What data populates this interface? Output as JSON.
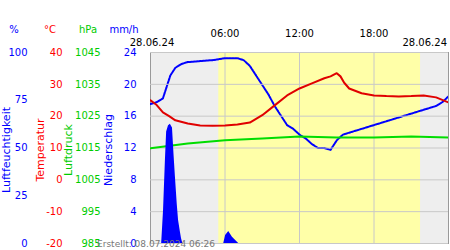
{
  "chart_data": [
    {
      "type": "line",
      "unit": "%",
      "ylabel": "Luftfeuchtigkeit",
      "color": "#0000ff",
      "date_start": "28.06.24",
      "date_end": "28.06.24",
      "caption": "Erstellt: 08.07.2024 06:26",
      "daylight": {
        "start": 5.5,
        "end": 21.75
      },
      "xlim": [
        0,
        24
      ],
      "xticks": [
        {
          "value": 6,
          "label": "06:00"
        },
        {
          "value": 12,
          "label": "12:00"
        },
        {
          "value": 18,
          "label": "18:00"
        }
      ],
      "ylim": [
        0,
        100
      ],
      "yticks": [
        0,
        25,
        50,
        75,
        100
      ],
      "grid": "x",
      "series": [
        {
          "name": "Luftfeuchtigkeit",
          "color": "#0000ff",
          "line_style": "dotted",
          "x": [
            0,
            0.5,
            1,
            1.3,
            1.6,
            2,
            2.5,
            3,
            4,
            5,
            6,
            7,
            7.5,
            8,
            8.5,
            9,
            9.5,
            10,
            10.5,
            11,
            11.5,
            12,
            12.5,
            13,
            13.5,
            14,
            14.5,
            15,
            15.5,
            16,
            17,
            18,
            19,
            20,
            21,
            22,
            23,
            23.5,
            24
          ],
          "values": [
            73,
            74,
            76,
            82,
            88,
            92,
            94,
            95,
            95.5,
            96,
            97,
            97,
            96,
            93,
            88,
            83,
            78,
            72,
            67,
            62,
            60,
            57,
            55,
            52,
            50,
            50,
            49,
            54,
            57,
            58,
            60,
            62,
            64,
            66,
            68,
            70,
            72,
            74,
            77
          ]
        }
      ]
    },
    {
      "type": "line",
      "unit": "°C",
      "ylabel": "Temperatur",
      "color": "#ff0000",
      "xlim": [
        0,
        24
      ],
      "ylim": [
        -20,
        40
      ],
      "yticks": [
        -20,
        -10,
        0,
        10,
        20,
        30,
        40
      ],
      "grid": "y",
      "series": [
        {
          "name": "Temperatur",
          "color": "#e00000",
          "x": [
            0,
            0.5,
            1,
            1.5,
            2,
            3,
            4,
            5,
            6,
            7,
            8,
            9,
            10,
            11,
            12,
            13,
            14,
            14.5,
            15,
            15.3,
            15.6,
            16,
            17,
            18,
            19,
            20,
            21,
            22,
            23,
            24
          ],
          "values": [
            25,
            23.5,
            21.2,
            20,
            18.7,
            17.7,
            17.1,
            17,
            17.1,
            17.4,
            18,
            20.3,
            23.4,
            26.5,
            28.7,
            30.3,
            31.9,
            32.5,
            33.5,
            32.5,
            30.5,
            28.7,
            27.2,
            26.5,
            26.3,
            26.2,
            26.3,
            26.5,
            25.9,
            24.3
          ]
        }
      ]
    },
    {
      "type": "line",
      "unit": "hPa",
      "ylabel": "Luftdruck",
      "color": "#00cc00",
      "xlim": [
        0,
        24
      ],
      "ylim": [
        985,
        1045
      ],
      "yticks": [
        985,
        995,
        1005,
        1015,
        1025,
        1035,
        1045
      ],
      "grid": false,
      "series": [
        {
          "name": "Luftdruck",
          "color": "#00dd00",
          "x": [
            0,
            3,
            6,
            9,
            12,
            15,
            18,
            21,
            24
          ],
          "values": [
            1014.9,
            1016.4,
            1017.4,
            1018,
            1018.6,
            1018.3,
            1018.3,
            1018.6,
            1018.3
          ]
        }
      ]
    },
    {
      "type": "area",
      "unit": "mm/h",
      "ylabel": "Niederschlag",
      "color": "#0000ff",
      "xlim": [
        0,
        24
      ],
      "ylim": [
        0,
        24
      ],
      "yticks": [
        0,
        4,
        8,
        12,
        16,
        20,
        24
      ],
      "grid": false,
      "series": [
        {
          "name": "Niederschlag",
          "color": "#0000ff",
          "x": [
            0.9,
            1.05,
            1.2,
            1.3,
            1.45,
            1.6,
            1.77,
            1.9,
            2.0,
            2.15,
            2.26,
            2.4,
            2.5,
            2.6,
            5.9,
            6.05,
            6.3,
            6.6,
            6.9,
            7.1
          ],
          "values": [
            0,
            4.1,
            10.4,
            14,
            14.8,
            15,
            14.5,
            11,
            8.5,
            5,
            2.9,
            1.5,
            0.6,
            0,
            0,
            1,
            1.5,
            0.8,
            0.3,
            0
          ]
        }
      ]
    }
  ]
}
